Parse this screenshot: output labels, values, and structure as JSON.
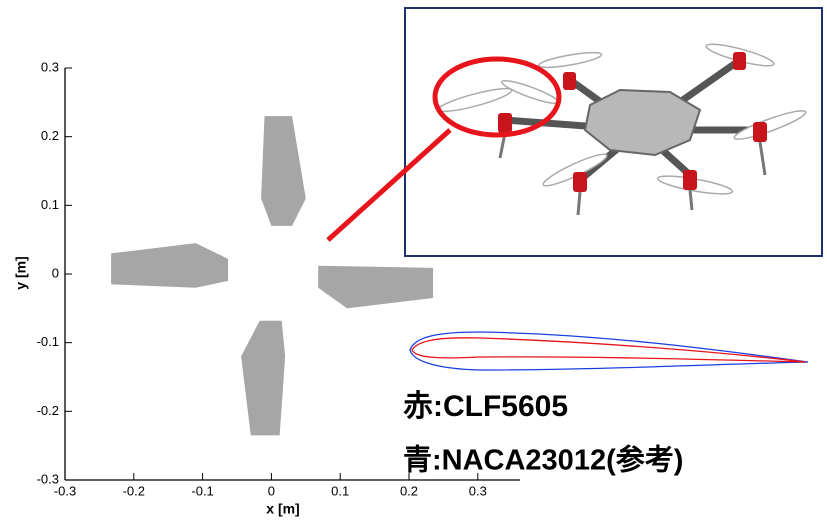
{
  "chart_data": {
    "type": "polygon",
    "xlabel": "x [m]",
    "ylabel": "y [m]",
    "xlim": [
      -0.3,
      0.36
    ],
    "ylim": [
      -0.3,
      0.3
    ],
    "xticks": [
      -0.3,
      -0.2,
      -0.1,
      0,
      0.1,
      0.2,
      0.3
    ],
    "yticks": [
      -0.3,
      -0.2,
      -0.1,
      0,
      0.1,
      0.2,
      0.3
    ],
    "color": "#a6a6a6",
    "series": [
      {
        "x": [
          -0.01,
          0.03,
          0.05,
          0.03,
          0.0,
          -0.015
        ],
        "y": [
          0.23,
          0.23,
          0.11,
          0.07,
          0.07,
          0.11
        ]
      },
      {
        "x": [
          -0.017,
          0.015,
          0.02,
          0.012,
          -0.03,
          -0.044
        ],
        "y": [
          -0.068,
          -0.068,
          -0.12,
          -0.235,
          -0.235,
          -0.12
        ]
      },
      {
        "x": [
          -0.233,
          -0.11,
          -0.063,
          -0.063,
          -0.11,
          -0.233
        ],
        "y": [
          0.03,
          0.045,
          0.022,
          -0.01,
          -0.02,
          -0.015
        ]
      },
      {
        "x": [
          0.068,
          0.235,
          0.235,
          0.11,
          0.068
        ],
        "y": [
          0.012,
          0.009,
          -0.035,
          -0.05,
          -0.02
        ]
      }
    ]
  },
  "airfoil_labels": [
    {
      "text": "赤:CLF5605",
      "color": "#e8141b"
    },
    {
      "text": "青:NACA23012(参考)",
      "color": "#1b3fe0"
    }
  ]
}
